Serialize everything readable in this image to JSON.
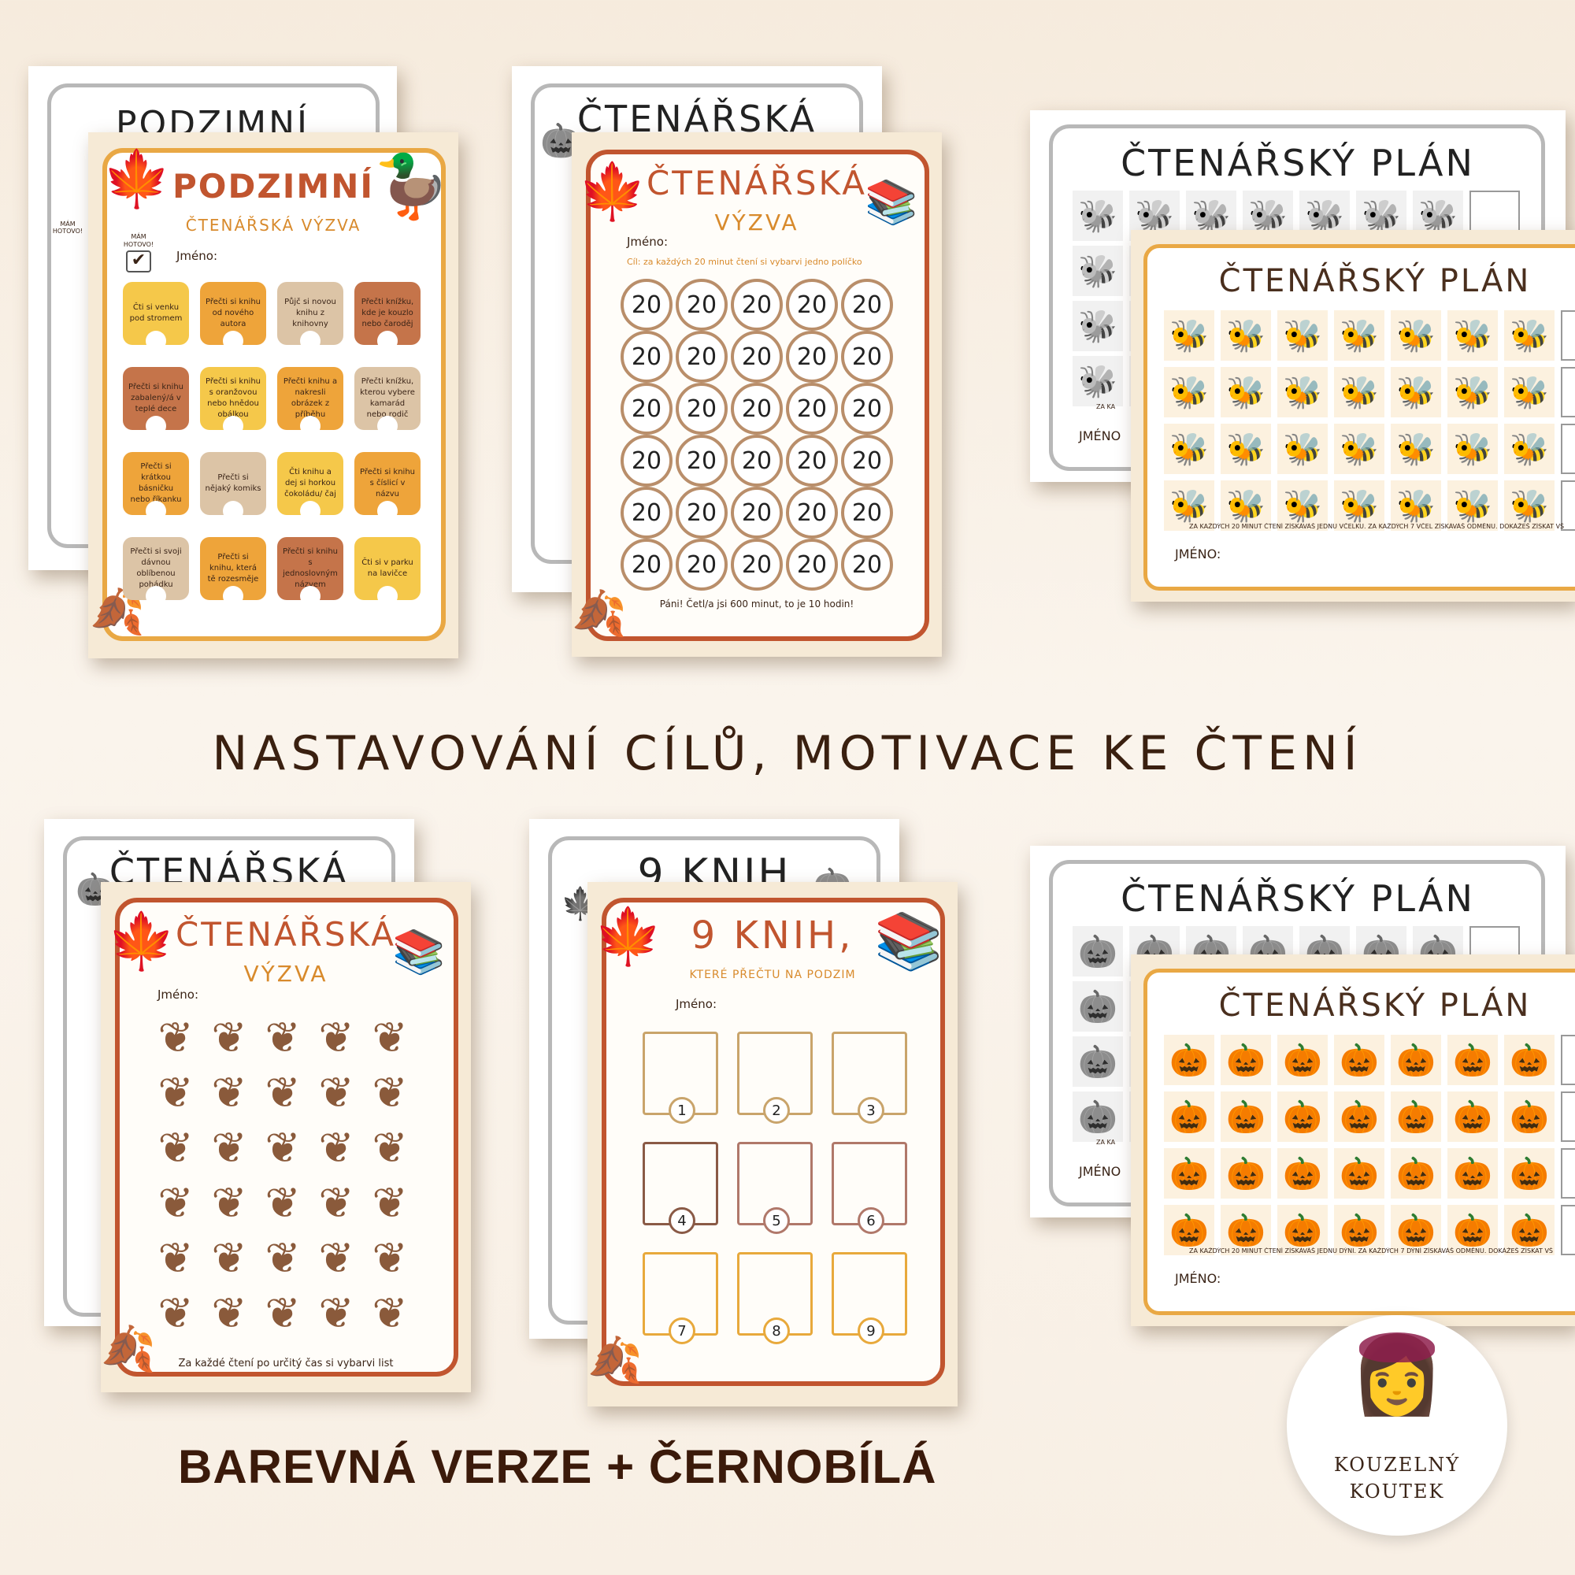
{
  "headline": "NASTAVOVÁNÍ CÍLŮ, MOTIVACE KE ČTENÍ",
  "bottom_label": "BAREVNÁ VERZE + ČERNOBÍLÁ",
  "brand": {
    "line1": "KOUZELNÝ",
    "line2": "KOUTEK"
  },
  "sheet1": {
    "bw_title": "PODZIMNÍ",
    "bw_done": "MÁM HOTOVO!",
    "title": "PODZIMNÍ",
    "subtitle": "ČTENÁŘSKÁ VÝZVA",
    "done": "MÁM HOTOVO!",
    "name_label": "Jméno:",
    "tasks": [
      {
        "text": "Čti si venku pod stromem",
        "color": "#f5c84a"
      },
      {
        "text": "Přečti si knihu od nového autora",
        "color": "#eea43a"
      },
      {
        "text": "Půjč si novou knihu z knihovny",
        "color": "#dcc4a6"
      },
      {
        "text": "Přečti knížku, kde je kouzlo nebo čaroděj",
        "color": "#c5744a"
      },
      {
        "text": "Přečti si knihu zabalený/á v teplé dece",
        "color": "#c5744a"
      },
      {
        "text": "Přečti si knihu s oranžovou nebo hnědou obálkou",
        "color": "#f5c84a"
      },
      {
        "text": "Přečti knihu a nakresli obrázek z příběhu",
        "color": "#eea43a"
      },
      {
        "text": "Přečti knížku, kterou vybere kamarád nebo rodič",
        "color": "#dcc4a6"
      },
      {
        "text": "Přečti si krátkou básničku nebo říkanku",
        "color": "#eea43a"
      },
      {
        "text": "Přečti si nějaký komiks",
        "color": "#dcc4a6"
      },
      {
        "text": "Čti knihu a dej si horkou čokoládu/ čaj",
        "color": "#f5c84a"
      },
      {
        "text": "Přečti si knihu s číslicí v názvu",
        "color": "#eea43a"
      },
      {
        "text": "Přečti si svoji dávnou oblíbenou pohádku",
        "color": "#dcc4a6"
      },
      {
        "text": "Přečti si knihu, která tě rozesměje",
        "color": "#eea43a"
      },
      {
        "text": "Přečti si knihu s jednoslovným názvem",
        "color": "#c5744a"
      },
      {
        "text": "Čti si v parku na lavičce",
        "color": "#f5c84a"
      }
    ]
  },
  "sheet2": {
    "bw_title": "ČTENÁŘSKÁ",
    "title": "ČTENÁŘSKÁ",
    "subtitle": "VÝZVA",
    "name_label": "Jméno:",
    "goal": "Cíl: za každých 20 minut čtení si vybarvi jedno políčko",
    "circle_value": "20",
    "footer": "Páni! Četl/a jsi 600 minut, to je 10 hodin!"
  },
  "sheet3": {
    "bw_title": "ČTENÁŘSKÝ PLÁN",
    "bw_note": "ZA KA",
    "bw_name": "JMÉNO",
    "title": "ČTENÁŘSKÝ PLÁN",
    "note": "ZA KAŽDÝCH 20 MINUT ČTENÍ ZÍSKÁVÁŠ JEDNU VČELKU. ZA KAŽDÝCH 7 VČEL ZÍSKÁVÁŠ ODMĚNU. DOKÁŽEŠ ZÍSKAT VŠ",
    "name_label": "JMÉNO:",
    "icon": "bee-icon"
  },
  "sheet4": {
    "bw_title": "ČTENÁŘSKÁ",
    "title": "ČTENÁŘSKÁ",
    "subtitle": "VÝZVA",
    "name_label": "Jméno:",
    "footer": "Za každé čtení po určitý čas si vybarvi list"
  },
  "sheet5": {
    "bw_title": "9 KNIH",
    "title": "9 KNIH,",
    "subtitle": "KTERÉ PŘEČTU NA PODZIM",
    "name_label": "Jméno:",
    "books": [
      {
        "n": "1",
        "color": "#c9a46b"
      },
      {
        "n": "2",
        "color": "#c9a46b"
      },
      {
        "n": "3",
        "color": "#c9a46b"
      },
      {
        "n": "4",
        "color": "#8a5a46"
      },
      {
        "n": "5",
        "color": "#b0786a"
      },
      {
        "n": "6",
        "color": "#b0786a"
      },
      {
        "n": "7",
        "color": "#e8a93c"
      },
      {
        "n": "8",
        "color": "#e8a93c"
      },
      {
        "n": "9",
        "color": "#e8a93c"
      }
    ]
  },
  "sheet6": {
    "bw_title": "ČTENÁŘSKÝ PLÁN",
    "bw_note": "ZA KA",
    "bw_name": "JMÉNO",
    "title": "ČTENÁŘSKÝ PLÁN",
    "note": "ZA KAŽDÝCH 20 MINUT ČTENÍ ZÍSKÁVÁŠ JEDNU DÝNI. ZA KAŽDÝCH 7 DÝNÍ ZÍSKÁVÁŠ ODMĚNU. DOKÁŽEŠ ZÍSKAT VŠ",
    "name_label": "JMÉNO:",
    "icon": "pumpkin-icon"
  },
  "colors": {
    "accent_red": "#c1552f",
    "accent_orange": "#e9a844",
    "text_brown": "#3a2417"
  }
}
